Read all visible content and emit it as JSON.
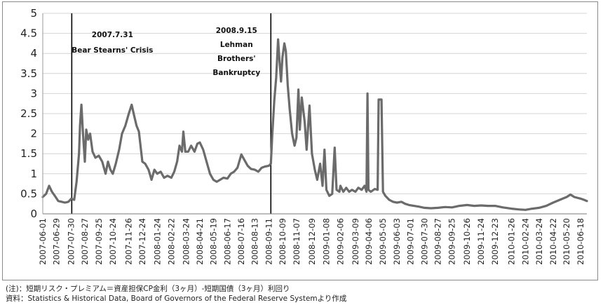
{
  "chart_data": {
    "type": "line",
    "title": "",
    "xlabel": "",
    "ylabel": "",
    "ylim": [
      0,
      5
    ],
    "yticks": [
      "0",
      "0.5",
      "1",
      "1.5",
      "2",
      "2.5",
      "3",
      "3.5",
      "4",
      "4.5",
      "5"
    ],
    "grid": true,
    "legend": "none",
    "x_range": [
      "2007-06-01",
      "2010-07-01"
    ],
    "x_tick_labels": [
      "2007-06-01",
      "2007-06-29",
      "2007-07-30",
      "2007-08-27",
      "2007-09-25",
      "2007-10-24",
      "2007-11-26",
      "2007-12-24",
      "2008-01-24",
      "2008-02-22",
      "2008-03-24",
      "2008-04-21",
      "2008-05-19",
      "2008-06-17",
      "2008-07-16",
      "2008-08-13",
      "2008-09-11",
      "2008-10-09",
      "2008-11-07",
      "2008-12-09",
      "2009-01-08",
      "2009-02-06",
      "2009-03-09",
      "2009-04-06",
      "2009-05-05",
      "2009-06-03",
      "2009-07-01",
      "2009-07-30",
      "2009-08-27",
      "2009-09-25",
      "2009-10-26",
      "2009-11-24",
      "2009-12-23",
      "2010-01-26",
      "2010-02-24",
      "2010-03-24",
      "2010-04-22",
      "2010-05-20",
      "2010-06-18"
    ],
    "line_color": "#6b6b6b",
    "series": [
      {
        "points": [
          [
            "2007-06-01",
            0.42
          ],
          [
            "2007-06-08",
            0.5
          ],
          [
            "2007-06-14",
            0.7
          ],
          [
            "2007-06-20",
            0.55
          ],
          [
            "2007-06-26",
            0.45
          ],
          [
            "2007-07-03",
            0.32
          ],
          [
            "2007-07-10",
            0.3
          ],
          [
            "2007-07-17",
            0.28
          ],
          [
            "2007-07-24",
            0.3
          ],
          [
            "2007-07-30",
            0.38
          ],
          [
            "2007-08-05",
            0.35
          ],
          [
            "2007-08-10",
            0.8
          ],
          [
            "2007-08-15",
            1.5
          ],
          [
            "2007-08-17",
            2.2
          ],
          [
            "2007-08-20",
            2.72
          ],
          [
            "2007-08-23",
            2.05
          ],
          [
            "2007-08-27",
            1.3
          ],
          [
            "2007-08-30",
            2.1
          ],
          [
            "2007-09-03",
            1.85
          ],
          [
            "2007-09-07",
            2.0
          ],
          [
            "2007-09-12",
            1.55
          ],
          [
            "2007-09-18",
            1.4
          ],
          [
            "2007-09-25",
            1.45
          ],
          [
            "2007-10-02",
            1.3
          ],
          [
            "2007-10-09",
            1.0
          ],
          [
            "2007-10-14",
            1.3
          ],
          [
            "2007-10-19",
            1.1
          ],
          [
            "2007-10-24",
            1.0
          ],
          [
            "2007-10-30",
            1.25
          ],
          [
            "2007-11-06",
            1.6
          ],
          [
            "2007-11-12",
            2.0
          ],
          [
            "2007-11-19",
            2.2
          ],
          [
            "2007-11-26",
            2.5
          ],
          [
            "2007-12-02",
            2.72
          ],
          [
            "2007-12-07",
            2.45
          ],
          [
            "2007-12-12",
            2.2
          ],
          [
            "2007-12-17",
            2.05
          ],
          [
            "2007-12-24",
            1.3
          ],
          [
            "2007-12-30",
            1.25
          ],
          [
            "2008-01-06",
            1.1
          ],
          [
            "2008-01-12",
            0.85
          ],
          [
            "2008-01-18",
            1.1
          ],
          [
            "2008-01-24",
            1.0
          ],
          [
            "2008-01-31",
            1.05
          ],
          [
            "2008-02-07",
            0.9
          ],
          [
            "2008-02-14",
            0.95
          ],
          [
            "2008-02-22",
            0.9
          ],
          [
            "2008-02-28",
            1.05
          ],
          [
            "2008-03-05",
            1.3
          ],
          [
            "2008-03-10",
            1.7
          ],
          [
            "2008-03-15",
            1.55
          ],
          [
            "2008-03-18",
            2.05
          ],
          [
            "2008-03-22",
            1.55
          ],
          [
            "2008-03-28",
            1.55
          ],
          [
            "2008-04-03",
            1.7
          ],
          [
            "2008-04-10",
            1.55
          ],
          [
            "2008-04-16",
            1.75
          ],
          [
            "2008-04-21",
            1.78
          ],
          [
            "2008-04-28",
            1.6
          ],
          [
            "2008-05-05",
            1.3
          ],
          [
            "2008-05-12",
            1.0
          ],
          [
            "2008-05-19",
            0.85
          ],
          [
            "2008-05-26",
            0.8
          ],
          [
            "2008-06-02",
            0.85
          ],
          [
            "2008-06-09",
            0.9
          ],
          [
            "2008-06-17",
            0.88
          ],
          [
            "2008-06-24",
            1.0
          ],
          [
            "2008-07-01",
            1.05
          ],
          [
            "2008-07-08",
            1.15
          ],
          [
            "2008-07-16",
            1.48
          ],
          [
            "2008-07-22",
            1.35
          ],
          [
            "2008-07-29",
            1.2
          ],
          [
            "2008-08-05",
            1.12
          ],
          [
            "2008-08-13",
            1.1
          ],
          [
            "2008-08-20",
            1.05
          ],
          [
            "2008-08-27",
            1.15
          ],
          [
            "2008-09-03",
            1.18
          ],
          [
            "2008-09-11",
            1.2
          ],
          [
            "2008-09-15",
            1.25
          ],
          [
            "2008-09-18",
            2.0
          ],
          [
            "2008-09-22",
            2.8
          ],
          [
            "2008-09-26",
            3.4
          ],
          [
            "2008-09-30",
            4.35
          ],
          [
            "2008-10-03",
            3.8
          ],
          [
            "2008-10-06",
            3.3
          ],
          [
            "2008-10-09",
            3.9
          ],
          [
            "2008-10-13",
            4.25
          ],
          [
            "2008-10-16",
            4.05
          ],
          [
            "2008-10-20",
            3.2
          ],
          [
            "2008-10-24",
            2.6
          ],
          [
            "2008-10-29",
            2.0
          ],
          [
            "2008-11-03",
            1.7
          ],
          [
            "2008-11-07",
            1.9
          ],
          [
            "2008-11-11",
            3.1
          ],
          [
            "2008-11-14",
            2.1
          ],
          [
            "2008-11-18",
            2.9
          ],
          [
            "2008-11-24",
            2.3
          ],
          [
            "2008-11-28",
            1.6
          ],
          [
            "2008-12-04",
            2.7
          ],
          [
            "2008-12-09",
            1.5
          ],
          [
            "2008-12-15",
            1.1
          ],
          [
            "2008-12-20",
            0.85
          ],
          [
            "2008-12-26",
            1.25
          ],
          [
            "2008-12-31",
            0.7
          ],
          [
            "2009-01-04",
            1.6
          ],
          [
            "2009-01-08",
            0.6
          ],
          [
            "2009-01-14",
            0.45
          ],
          [
            "2009-01-20",
            0.5
          ],
          [
            "2009-01-25",
            1.65
          ],
          [
            "2009-01-29",
            0.6
          ],
          [
            "2009-02-04",
            0.55
          ],
          [
            "2009-02-06",
            0.7
          ],
          [
            "2009-02-12",
            0.55
          ],
          [
            "2009-02-18",
            0.65
          ],
          [
            "2009-02-24",
            0.55
          ],
          [
            "2009-03-02",
            0.6
          ],
          [
            "2009-03-09",
            0.55
          ],
          [
            "2009-03-15",
            0.65
          ],
          [
            "2009-03-22",
            0.6
          ],
          [
            "2009-03-28",
            0.7
          ],
          [
            "2009-04-01",
            0.55
          ],
          [
            "2009-04-03",
            3.0
          ],
          [
            "2009-04-05",
            0.6
          ],
          [
            "2009-04-10",
            0.55
          ],
          [
            "2009-04-18",
            0.62
          ],
          [
            "2009-04-24",
            0.6
          ],
          [
            "2009-04-26",
            2.85
          ],
          [
            "2009-05-02",
            2.85
          ],
          [
            "2009-05-05",
            0.55
          ],
          [
            "2009-05-10",
            0.45
          ],
          [
            "2009-05-18",
            0.35
          ],
          [
            "2009-05-26",
            0.3
          ],
          [
            "2009-06-03",
            0.28
          ],
          [
            "2009-06-12",
            0.3
          ],
          [
            "2009-06-20",
            0.25
          ],
          [
            "2009-06-28",
            0.22
          ],
          [
            "2009-07-08",
            0.2
          ],
          [
            "2009-07-18",
            0.18
          ],
          [
            "2009-07-30",
            0.15
          ],
          [
            "2009-08-12",
            0.14
          ],
          [
            "2009-08-27",
            0.15
          ],
          [
            "2009-09-10",
            0.17
          ],
          [
            "2009-09-25",
            0.16
          ],
          [
            "2009-10-10",
            0.2
          ],
          [
            "2009-10-26",
            0.22
          ],
          [
            "2009-11-10",
            0.2
          ],
          [
            "2009-11-24",
            0.21
          ],
          [
            "2009-12-08",
            0.2
          ],
          [
            "2009-12-23",
            0.2
          ],
          [
            "2010-01-08",
            0.16
          ],
          [
            "2010-01-26",
            0.13
          ],
          [
            "2010-02-10",
            0.11
          ],
          [
            "2010-02-24",
            0.1
          ],
          [
            "2010-03-10",
            0.13
          ],
          [
            "2010-03-24",
            0.15
          ],
          [
            "2010-04-08",
            0.2
          ],
          [
            "2010-04-22",
            0.28
          ],
          [
            "2010-05-06",
            0.35
          ],
          [
            "2010-05-20",
            0.42
          ],
          [
            "2010-05-28",
            0.48
          ],
          [
            "2010-06-05",
            0.42
          ],
          [
            "2010-06-18",
            0.38
          ],
          [
            "2010-06-25",
            0.35
          ],
          [
            "2010-07-01",
            0.32
          ]
        ]
      }
    ],
    "event_lines": [
      {
        "date": "2007-07-31",
        "label_lines": [
          "2007.7.31",
          "Bear Stearns' Crisis"
        ]
      },
      {
        "date": "2008-09-15",
        "label_lines": [
          "2008.9.15",
          "Lehman",
          "Brothers'",
          "Bankruptcy"
        ]
      }
    ]
  },
  "notes": {
    "line1": "(注)：短期リスク・プレミアム＝資産担保CP金利（3ヶ月）-短期国債（3ヶ月）利回り",
    "line2": "資料：Statistics & Historical Data, Board of Governors of the Federal Reserve Systemより作成"
  }
}
